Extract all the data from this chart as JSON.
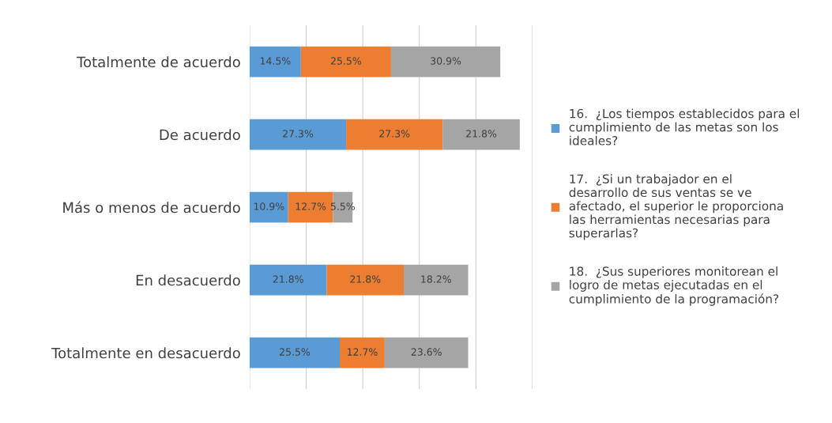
{
  "chart_data": {
    "type": "bar",
    "orientation": "horizontal",
    "stacked": true,
    "categories": [
      "Totalmente de acuerdo",
      "De acuerdo",
      "Más o menos de acuerdo",
      "En desacuerdo",
      "Totalmente en desacuerdo"
    ],
    "series": [
      {
        "name": "16.  ¿Los tiempos establecidos para el cumplimiento de las metas son los ideales?",
        "color": "#5b9bd5",
        "values": [
          14.5,
          27.3,
          10.9,
          21.8,
          25.5
        ],
        "value_labels": [
          "14.5%",
          "27.3%",
          "10.9%",
          "21.8%",
          "25.5%"
        ]
      },
      {
        "name": "17.  ¿Si un trabajador en el desarrollo de sus ventas se ve afectado, el superior le proporciona las herramientas necesarias para superarlas?",
        "color": "#ed7d31",
        "values": [
          25.5,
          27.3,
          12.7,
          21.8,
          12.7
        ],
        "value_labels": [
          "25.5%",
          "27.3%",
          "12.7%",
          "21.8%",
          "12.7%"
        ]
      },
      {
        "name": "18.  ¿Sus superiores monitorean el logro de metas ejecutadas en el cumplimiento de la programación?",
        "color": "#a5a5a5",
        "values": [
          30.9,
          21.8,
          5.5,
          18.2,
          23.6
        ],
        "value_labels": [
          "30.9%",
          "21.8%",
          "5.5%",
          "18.2%",
          "23.6%"
        ]
      }
    ],
    "xlim": [
      0,
      80
    ],
    "xticks": [
      {
        "value": 0,
        "label": null
      },
      {
        "value": 16,
        "label": null
      },
      {
        "value": 32,
        "label": null
      },
      {
        "value": 48,
        "label": null
      },
      {
        "value": 64,
        "label": null
      },
      {
        "value": 80,
        "label": null
      }
    ],
    "grid": "x",
    "legend": "right",
    "tick_labels": "y"
  }
}
